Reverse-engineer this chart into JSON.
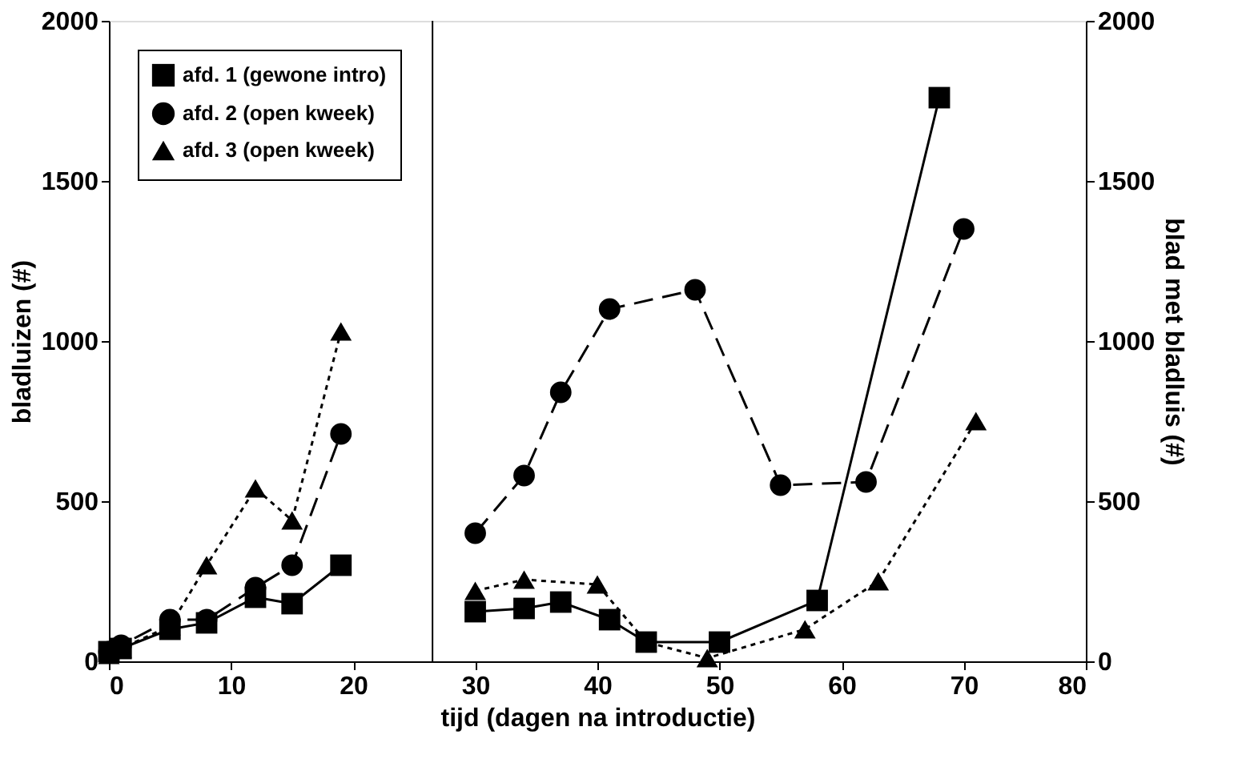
{
  "chart_data": {
    "type": "line",
    "xlabel": "tijd (dagen na introductie)",
    "ylabel": "bladluizen (#)",
    "y2label": "blad met bladluis (#)",
    "xlim": [
      0,
      80
    ],
    "xticks": [
      0,
      10,
      20,
      30,
      40,
      50,
      60,
      70,
      80
    ],
    "ylim": [
      0,
      2000
    ],
    "yticks": [
      0,
      500,
      1000,
      1500,
      2000
    ],
    "y2lim": [
      0,
      2000
    ],
    "y2ticks": [
      0,
      500,
      1000,
      1500,
      2000
    ],
    "grid": false,
    "legend": "top left",
    "ref_lines": [
      {
        "axis": "x",
        "value": 26.5,
        "color": "#000000",
        "line_style": "solid"
      }
    ],
    "series": [
      {
        "name": "afd. 1 (gewone intro)",
        "color": "#000000",
        "marker": "square",
        "line_style": "solid",
        "x": [
          0,
          1,
          5,
          8,
          12,
          15,
          19
        ],
        "values": [
          30,
          40,
          100,
          120,
          200,
          180,
          300
        ]
      },
      {
        "name": "afd. 2 (open kweek)",
        "color": "#000000",
        "marker": "circle",
        "line_style": "dashed",
        "x": [
          0,
          1,
          5,
          8,
          12,
          15,
          19
        ],
        "values": [
          30,
          50,
          130,
          130,
          230,
          300,
          710
        ]
      },
      {
        "name": "afd. 3 (open kweek)",
        "color": "#000000",
        "marker": "triangle",
        "line_style": "dotted",
        "x": [
          0,
          1,
          5,
          8,
          12,
          15,
          19
        ],
        "values": [
          20,
          40,
          110,
          300,
          540,
          440,
          1030
        ]
      },
      {
        "color": "#000000",
        "marker": "square",
        "line_style": "solid",
        "axis": "y2",
        "x": [
          30,
          34,
          37,
          41,
          44,
          50,
          58,
          68
        ],
        "values": [
          155,
          165,
          185,
          130,
          60,
          60,
          190,
          1760
        ]
      },
      {
        "color": "#000000",
        "marker": "circle",
        "line_style": "dashed",
        "axis": "y2",
        "x": [
          30,
          34,
          37,
          41,
          48,
          55,
          62,
          70
        ],
        "values": [
          400,
          580,
          840,
          1100,
          1160,
          550,
          560,
          1350
        ]
      },
      {
        "color": "#000000",
        "marker": "triangle",
        "line_style": "dotted",
        "axis": "y2",
        "x": [
          30,
          34,
          40,
          44,
          49,
          57,
          63,
          71
        ],
        "values": [
          220,
          255,
          240,
          60,
          10,
          100,
          250,
          750
        ]
      }
    ]
  }
}
